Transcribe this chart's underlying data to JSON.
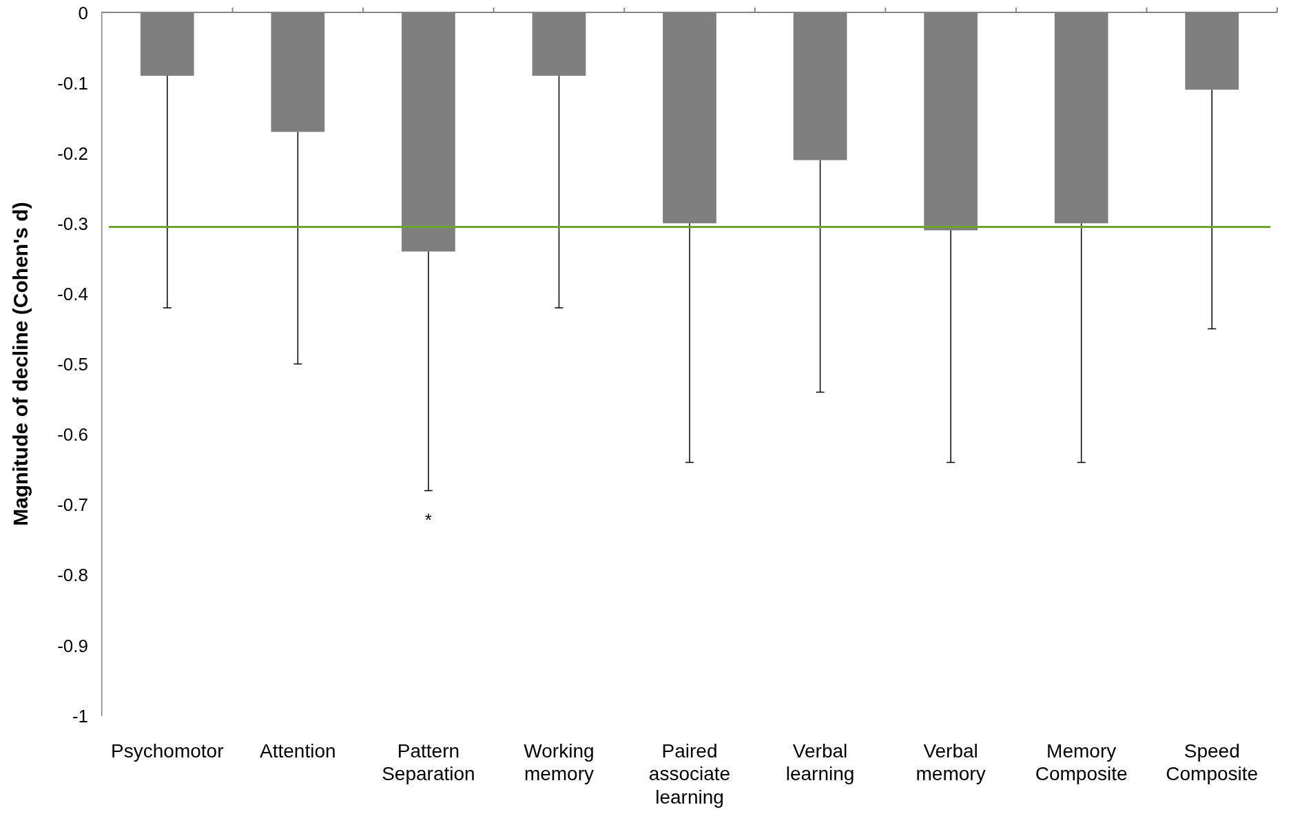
{
  "chart_data": {
    "type": "bar",
    "ylabel": "Magnitude of decline (Cohen's d)",
    "categories": [
      "Psychomotor",
      "Attention",
      "Pattern Separation",
      "Working memory",
      "Paired associate learning",
      "Verbal learning",
      "Verbal memory",
      "Memory Composite",
      "Speed Composite"
    ],
    "values": [
      -0.09,
      -0.17,
      -0.34,
      -0.09,
      -0.3,
      -0.21,
      -0.31,
      -0.3,
      -0.11
    ],
    "errors": [
      [
        -0.42,
        -0.09
      ],
      [
        -0.5,
        -0.17
      ],
      [
        -0.68,
        -0.34
      ],
      [
        -0.42,
        -0.09
      ],
      [
        -0.64,
        -0.3
      ],
      [
        -0.54,
        -0.21
      ],
      [
        -0.64,
        -0.31
      ],
      [
        -0.64,
        -0.3
      ],
      [
        -0.45,
        -0.11
      ]
    ],
    "color": "#7f7f7f",
    "ylim": [
      -1,
      0
    ],
    "yticks": [
      -1,
      -0.9,
      -0.8,
      -0.7,
      -0.6,
      -0.5,
      -0.4,
      -0.3,
      -0.2,
      -0.1,
      0
    ],
    "grid": false,
    "ref_lines": [
      {
        "axis": "y",
        "value": 0,
        "color": "#868686"
      },
      {
        "axis": "y",
        "value": -0.305,
        "color": "#6aa531"
      }
    ],
    "annotations": [
      {
        "text": "*",
        "x": "Pattern Separation",
        "y": -0.68
      }
    ]
  }
}
